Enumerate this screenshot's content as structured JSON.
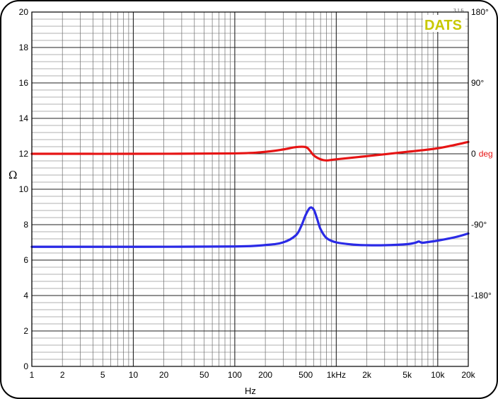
{
  "chart_data": {
    "type": "line",
    "xlabel": "Hz",
    "ylabel": "Ω",
    "y2label": "deg",
    "x_scale": "log",
    "xlim": [
      1,
      20000
    ],
    "ylim": [
      0,
      20
    ],
    "y2lim": [
      -270,
      180
    ],
    "grid": true,
    "x_ticks": [
      1,
      2,
      5,
      10,
      20,
      50,
      100,
      200,
      500,
      1000,
      2000,
      5000,
      10000,
      20000
    ],
    "x_tick_labels": [
      "1",
      "2",
      "5",
      "10",
      "20",
      "50",
      "100",
      "200",
      "500",
      "1kHz",
      "2k",
      "5k",
      "10k",
      "20k"
    ],
    "y_ticks": [
      0,
      2,
      4,
      6,
      8,
      10,
      12,
      14,
      16,
      18,
      20
    ],
    "y_tick_labels": [
      "0",
      "2",
      "4",
      "6",
      "8",
      "10",
      "12",
      "14",
      "16",
      "18",
      "20"
    ],
    "y2_ticks": [
      180,
      90,
      0,
      -90,
      -180
    ],
    "y2_tick_labels": [
      "180°",
      "90°",
      "0",
      "-90°",
      "-180°"
    ],
    "series": [
      {
        "axis": "left",
        "color": "#2a2ae6",
        "x": [
          1,
          10,
          100,
          200,
          300,
          400,
          450,
          500,
          550,
          600,
          650,
          700,
          800,
          1000,
          1500,
          2000,
          3000,
          5000,
          6000,
          6500,
          7000,
          8000,
          10000,
          15000,
          20000
        ],
        "y": [
          6.75,
          6.75,
          6.77,
          6.85,
          7.0,
          7.4,
          7.9,
          8.55,
          8.95,
          8.85,
          8.3,
          7.75,
          7.25,
          7.0,
          6.87,
          6.84,
          6.84,
          6.9,
          6.98,
          7.05,
          6.98,
          7.02,
          7.1,
          7.3,
          7.5
        ]
      },
      {
        "axis": "right",
        "color": "#e61414",
        "x": [
          1,
          10,
          100,
          200,
          300,
          400,
          500,
          550,
          600,
          700,
          800,
          1000,
          2000,
          5000,
          10000,
          20000
        ],
        "y": [
          0,
          0,
          0.5,
          2.5,
          5.5,
          8.5,
          8.5,
          4,
          -2,
          -7,
          -8.5,
          -7,
          -3,
          2.5,
          7,
          15
        ]
      }
    ]
  },
  "branding": {
    "logo_text": "DATS",
    "version": "3.1.6",
    "deg_unit": "deg"
  }
}
